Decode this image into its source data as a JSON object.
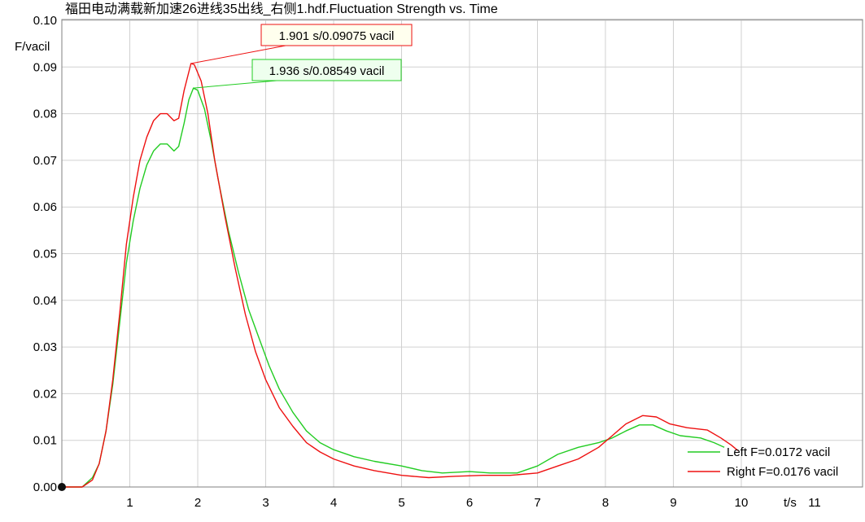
{
  "chart_data": {
    "type": "line",
    "title": "福田电动满载新加速26进线35出线_右侧1.hdf.Fluctuation Strength vs. Time",
    "xlabel": "t/s",
    "ylabel": "F/vacil",
    "xlim": [
      0,
      11
    ],
    "ylim": [
      0,
      0.1
    ],
    "x_ticks": [
      "1",
      "2",
      "3",
      "4",
      "5",
      "6",
      "7",
      "8",
      "9",
      "10",
      "11"
    ],
    "y_ticks": [
      "0.00",
      "0.01",
      "0.02",
      "0.03",
      "0.04",
      "0.05",
      "0.06",
      "0.07",
      "0.08",
      "0.09",
      "0.10"
    ],
    "grid": true,
    "legend_position": "bottom-right",
    "series": [
      {
        "name": "Left F=0.0172 vacil",
        "color": "#22cc22",
        "points": [
          [
            0,
            0
          ],
          [
            0.3,
            0
          ],
          [
            0.45,
            0.002
          ],
          [
            0.55,
            0.005
          ],
          [
            0.65,
            0.012
          ],
          [
            0.75,
            0.022
          ],
          [
            0.85,
            0.035
          ],
          [
            0.95,
            0.048
          ],
          [
            1.05,
            0.057
          ],
          [
            1.15,
            0.064
          ],
          [
            1.25,
            0.069
          ],
          [
            1.35,
            0.072
          ],
          [
            1.45,
            0.0735
          ],
          [
            1.55,
            0.0735
          ],
          [
            1.65,
            0.072
          ],
          [
            1.72,
            0.073
          ],
          [
            1.8,
            0.078
          ],
          [
            1.87,
            0.083
          ],
          [
            1.936,
            0.08549
          ],
          [
            2.0,
            0.085
          ],
          [
            2.1,
            0.081
          ],
          [
            2.2,
            0.074
          ],
          [
            2.3,
            0.066
          ],
          [
            2.45,
            0.055
          ],
          [
            2.6,
            0.046
          ],
          [
            2.75,
            0.038
          ],
          [
            2.9,
            0.032
          ],
          [
            3.05,
            0.026
          ],
          [
            3.2,
            0.021
          ],
          [
            3.4,
            0.016
          ],
          [
            3.6,
            0.012
          ],
          [
            3.8,
            0.0095
          ],
          [
            4.0,
            0.008
          ],
          [
            4.3,
            0.0065
          ],
          [
            4.6,
            0.0055
          ],
          [
            5.0,
            0.0045
          ],
          [
            5.3,
            0.0035
          ],
          [
            5.6,
            0.003
          ],
          [
            6.0,
            0.0033
          ],
          [
            6.3,
            0.003
          ],
          [
            6.7,
            0.003
          ],
          [
            7.0,
            0.0045
          ],
          [
            7.3,
            0.007
          ],
          [
            7.6,
            0.0085
          ],
          [
            7.9,
            0.0095
          ],
          [
            8.1,
            0.0105
          ],
          [
            8.3,
            0.012
          ],
          [
            8.5,
            0.0133
          ],
          [
            8.7,
            0.0133
          ],
          [
            8.9,
            0.012
          ],
          [
            9.1,
            0.011
          ],
          [
            9.4,
            0.0105
          ],
          [
            9.6,
            0.0095
          ],
          [
            9.75,
            0.0085
          ]
        ]
      },
      {
        "name": "Right F=0.0176 vacil",
        "color": "#ee1111",
        "points": [
          [
            0,
            0
          ],
          [
            0.3,
            0
          ],
          [
            0.45,
            0.0015
          ],
          [
            0.55,
            0.005
          ],
          [
            0.65,
            0.012
          ],
          [
            0.75,
            0.023
          ],
          [
            0.85,
            0.037
          ],
          [
            0.95,
            0.052
          ],
          [
            1.05,
            0.062
          ],
          [
            1.15,
            0.07
          ],
          [
            1.25,
            0.075
          ],
          [
            1.35,
            0.0785
          ],
          [
            1.45,
            0.08
          ],
          [
            1.55,
            0.08
          ],
          [
            1.65,
            0.0785
          ],
          [
            1.72,
            0.079
          ],
          [
            1.8,
            0.085
          ],
          [
            1.901,
            0.09075
          ],
          [
            1.95,
            0.0905
          ],
          [
            2.05,
            0.087
          ],
          [
            2.15,
            0.08
          ],
          [
            2.25,
            0.07
          ],
          [
            2.4,
            0.058
          ],
          [
            2.55,
            0.047
          ],
          [
            2.7,
            0.037
          ],
          [
            2.85,
            0.029
          ],
          [
            3.0,
            0.023
          ],
          [
            3.2,
            0.017
          ],
          [
            3.4,
            0.013
          ],
          [
            3.6,
            0.0095
          ],
          [
            3.8,
            0.0075
          ],
          [
            4.0,
            0.006
          ],
          [
            4.3,
            0.0045
          ],
          [
            4.6,
            0.0035
          ],
          [
            5.0,
            0.0025
          ],
          [
            5.4,
            0.002
          ],
          [
            5.8,
            0.0023
          ],
          [
            6.2,
            0.0025
          ],
          [
            6.6,
            0.0025
          ],
          [
            7.0,
            0.003
          ],
          [
            7.3,
            0.0045
          ],
          [
            7.6,
            0.006
          ],
          [
            7.9,
            0.0085
          ],
          [
            8.1,
            0.011
          ],
          [
            8.3,
            0.0135
          ],
          [
            8.55,
            0.0153
          ],
          [
            8.75,
            0.015
          ],
          [
            8.95,
            0.0135
          ],
          [
            9.2,
            0.0127
          ],
          [
            9.5,
            0.0122
          ],
          [
            9.7,
            0.0105
          ],
          [
            9.85,
            0.009
          ],
          [
            9.95,
            0.0078
          ]
        ]
      }
    ],
    "annotations": [
      {
        "label": "1.901 s/0.09075 vacil",
        "x": 1.901,
        "y": 0.09075,
        "series": "Right F=0.0176 vacil",
        "bg": "#ffffee",
        "border": "#ee1111"
      },
      {
        "label": "1.936 s/0.08549 vacil",
        "x": 1.936,
        "y": 0.08549,
        "series": "Left F=0.0172 vacil",
        "bg": "#eeffee",
        "border": "#22cc22"
      }
    ]
  }
}
